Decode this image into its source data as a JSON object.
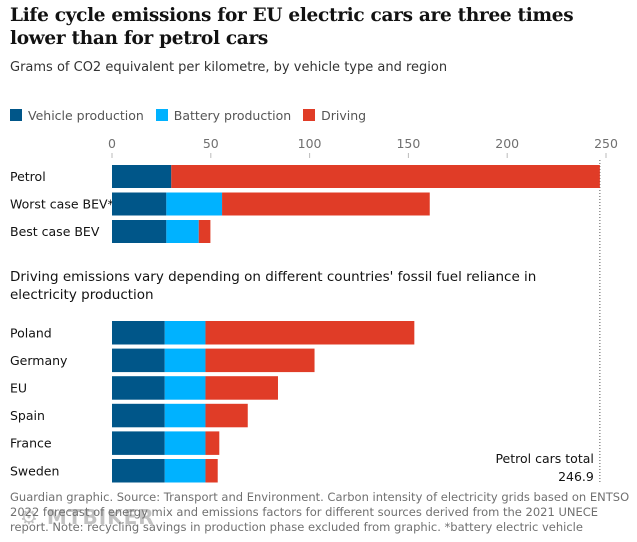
{
  "title": "Life cycle emissions for EU electric cars are three times lower than for petrol cars",
  "subtitle": "Grams of CO2 equivalent per kilometre, by vehicle type and region",
  "subtitle2": "Driving emissions vary depending on different countries' fossil fuel reliance in electricity production",
  "footer": "Guardian graphic. Source: Transport and Environment. Carbon intensity of electricity grids based on ENTSO 2022 forecast of energy mix and emissions factors for different sources derived from the 2021 UNECE report. Note: recycling savings in production phase excluded from graphic. *battery electric vehicle",
  "watermark": "MTBIKER",
  "chart_data": {
    "type": "bar",
    "orientation": "horizontal",
    "stacked": true,
    "xlim": [
      0,
      250
    ],
    "xticks": [
      0,
      50,
      100,
      150,
      200,
      250
    ],
    "grid": false,
    "legend_placement": "top-left",
    "series": [
      {
        "name": "Vehicle production",
        "color": "#005689"
      },
      {
        "name": "Battery production",
        "color": "#00b2ff"
      },
      {
        "name": "Driving",
        "color": "#e03c27"
      }
    ],
    "groups": [
      {
        "categories": [
          "Petrol",
          "Worst case BEV*",
          "Best case BEV"
        ],
        "values": [
          [
            30,
            0,
            216.9
          ],
          [
            27.5,
            28.2,
            105.1
          ],
          [
            27.5,
            16.4,
            5.9
          ]
        ]
      },
      {
        "categories": [
          "Poland",
          "Germany",
          "EU",
          "Spain",
          "France",
          "Sweden"
        ],
        "values": [
          [
            26.7,
            20.6,
            105.7
          ],
          [
            26.7,
            20.6,
            55.2
          ],
          [
            26.7,
            20.6,
            36.7
          ],
          [
            26.7,
            20.6,
            21.4
          ],
          [
            26.7,
            20.6,
            7.0
          ],
          [
            26.7,
            20.6,
            6.2
          ]
        ]
      }
    ],
    "reference": {
      "label": "Petrol cars total",
      "value": 246.9
    }
  }
}
